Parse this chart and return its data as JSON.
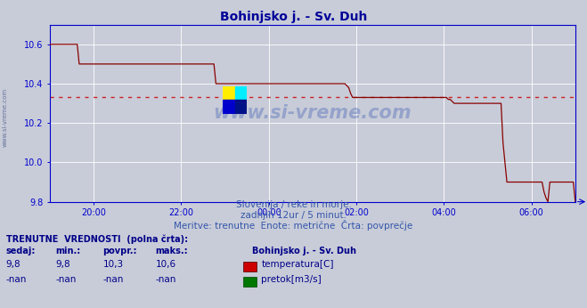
{
  "title": "Bohinjsko j. - Sv. Duh",
  "title_color": "#000099",
  "bg_color": "#c8ccd8",
  "plot_bg_color": "#c8ccd8",
  "line_color": "#880000",
  "avg_line_color": "#cc2222",
  "avg_value": 10.33,
  "x_axis_color": "#0000cc",
  "y_axis_color": "#0000cc",
  "grid_color": "#ffffff",
  "ylim": [
    9.8,
    10.7
  ],
  "yticks": [
    9.8,
    10.0,
    10.2,
    10.4,
    10.6
  ],
  "watermark": "www.si-vreme.com",
  "subtitle1": "Slovenija / reke in morje.",
  "subtitle2": "zadnjih 12ur / 5 minut.",
  "subtitle3": "Meritve: trenutne  Enote: metrične  Črta: povprečje",
  "legend_title": "Bohinjsko j. - Sv. Duh",
  "legend_items": [
    {
      "label": "temperatura[C]",
      "color": "#cc0000"
    },
    {
      "label": "pretok[m3/s]",
      "color": "#007700"
    }
  ],
  "table_headers": [
    "sedaj:",
    "min.:",
    "povpr.:",
    "maks.:"
  ],
  "table_row1": [
    "9,8",
    "9,8",
    "10,3",
    "10,6"
  ],
  "table_row2": [
    "-nan",
    "-nan",
    "-nan",
    "-nan"
  ],
  "table_label": "TRENUTNE  VREDNOSTI  (polna črta):",
  "temp_data": [
    10.6,
    10.6,
    10.6,
    10.6,
    10.6,
    10.6,
    10.6,
    10.6,
    10.6,
    10.6,
    10.6,
    10.6,
    10.6,
    10.6,
    10.6,
    10.5,
    10.5,
    10.5,
    10.5,
    10.5,
    10.5,
    10.5,
    10.5,
    10.5,
    10.5,
    10.5,
    10.5,
    10.5,
    10.5,
    10.5,
    10.5,
    10.5,
    10.5,
    10.5,
    10.5,
    10.5,
    10.5,
    10.5,
    10.5,
    10.5,
    10.5,
    10.5,
    10.5,
    10.5,
    10.5,
    10.5,
    10.5,
    10.5,
    10.5,
    10.5,
    10.5,
    10.5,
    10.5,
    10.5,
    10.5,
    10.5,
    10.5,
    10.5,
    10.5,
    10.5,
    10.5,
    10.5,
    10.5,
    10.5,
    10.5,
    10.5,
    10.5,
    10.5,
    10.5,
    10.5,
    10.5,
    10.5,
    10.5,
    10.5,
    10.5,
    10.5,
    10.5,
    10.5,
    10.5,
    10.5,
    10.5,
    10.5,
    10.5,
    10.5,
    10.5,
    10.4,
    10.4,
    10.4,
    10.4,
    10.4,
    10.4,
    10.4,
    10.4,
    10.4,
    10.4,
    10.4,
    10.4,
    10.4,
    10.4,
    10.4,
    10.4,
    10.4,
    10.4,
    10.4,
    10.4,
    10.4,
    10.4,
    10.4,
    10.4,
    10.4,
    10.4,
    10.4,
    10.4,
    10.4,
    10.4,
    10.4,
    10.4,
    10.4,
    10.4,
    10.4,
    10.4,
    10.4,
    10.4,
    10.4,
    10.4,
    10.4,
    10.4,
    10.4,
    10.4,
    10.4,
    10.4,
    10.4,
    10.4,
    10.4,
    10.4,
    10.4,
    10.4,
    10.4,
    10.4,
    10.4,
    10.4,
    10.4,
    10.4,
    10.4,
    10.4,
    10.4,
    10.4,
    10.4,
    10.4,
    10.4,
    10.4,
    10.4,
    10.39,
    10.38,
    10.35,
    10.33,
    10.33,
    10.33,
    10.33,
    10.33,
    10.33,
    10.33,
    10.33,
    10.33,
    10.33,
    10.33,
    10.33,
    10.33,
    10.33,
    10.33,
    10.33,
    10.33,
    10.33,
    10.33,
    10.33,
    10.33,
    10.33,
    10.33,
    10.33,
    10.33,
    10.33,
    10.33,
    10.33,
    10.33,
    10.33,
    10.33,
    10.33,
    10.33,
    10.33,
    10.33,
    10.33,
    10.33,
    10.33,
    10.33,
    10.33,
    10.33,
    10.33,
    10.33,
    10.33,
    10.33,
    10.33,
    10.33,
    10.33,
    10.33,
    10.32,
    10.32,
    10.31,
    10.3,
    10.3,
    10.3,
    10.3,
    10.3,
    10.3,
    10.3,
    10.3,
    10.3,
    10.3,
    10.3,
    10.3,
    10.3,
    10.3,
    10.3,
    10.3,
    10.3,
    10.3,
    10.3,
    10.3,
    10.3,
    10.3,
    10.3,
    10.3,
    10.3,
    10.1,
    10.0,
    9.9,
    9.9,
    9.9,
    9.9,
    9.9,
    9.9,
    9.9,
    9.9,
    9.9,
    9.9,
    9.9,
    9.9,
    9.9,
    9.9,
    9.9,
    9.9,
    9.9,
    9.9,
    9.9,
    9.85,
    9.82,
    9.8,
    9.9,
    9.9,
    9.9,
    9.9,
    9.9,
    9.9,
    9.9,
    9.9,
    9.9,
    9.9,
    9.9,
    9.9,
    9.9,
    9.8
  ]
}
